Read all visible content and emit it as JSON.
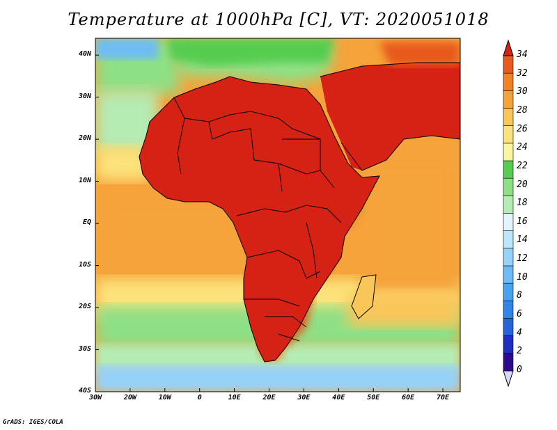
{
  "title": "Temperature at 1000hPa [C], VT: 2020051018",
  "credit": "GrADS: IGES/COLA",
  "map": {
    "lat_labels": [
      "40N",
      "30N",
      "20N",
      "10N",
      "EQ",
      "10S",
      "20S",
      "30S",
      "40S"
    ],
    "lon_labels": [
      "30W",
      "20W",
      "10W",
      "0",
      "10E",
      "20E",
      "30E",
      "40E",
      "50E",
      "60E",
      "70E"
    ],
    "lat_range": [
      -40,
      44
    ],
    "lon_range": [
      -30,
      75
    ]
  },
  "colorbar": {
    "labels": [
      "34",
      "32",
      "30",
      "28",
      "26",
      "24",
      "22",
      "20",
      "18",
      "16",
      "14",
      "12",
      "10",
      "8",
      "6",
      "4",
      "2",
      "0"
    ],
    "colors": [
      "#2e0a8c",
      "#1f2fbf",
      "#2864d8",
      "#2f86e6",
      "#4aa3f0",
      "#6ebcf5",
      "#96d2f8",
      "#bce6fb",
      "#e1f5fb",
      "#b4ecb4",
      "#8ee086",
      "#56cc50",
      "#f9f5a0",
      "#fce27a",
      "#f9c65a",
      "#f5a33a",
      "#f08228",
      "#e85a1e",
      "#d62214"
    ]
  }
}
